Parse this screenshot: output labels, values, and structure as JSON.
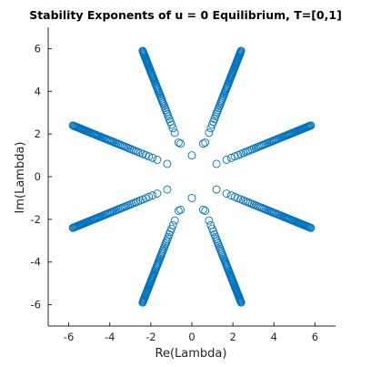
{
  "chart_data": {
    "type": "scatter",
    "title": "Stability Exponents of u = 0 Equilibrium, T=[0,1]",
    "xlabel": "Re(Lambda)",
    "ylabel": "Im(Lambda)",
    "xlim": [
      -7,
      7
    ],
    "ylim": [
      -7,
      7
    ],
    "xticks": [
      -6,
      -4,
      -2,
      0,
      2,
      4,
      6
    ],
    "yticks": [
      -6,
      -4,
      -2,
      0,
      2,
      4,
      6
    ],
    "grid": false,
    "marker": "open-circle",
    "color": "#0072BD",
    "branches": [
      {
        "from": [
          1.2,
          0.6
        ],
        "to": [
          5.8,
          2.4
        ],
        "points": 60
      },
      {
        "from": [
          0.65,
          1.6
        ],
        "to": [
          2.4,
          5.9
        ],
        "points": 60
      },
      {
        "from": [
          -1.2,
          0.6
        ],
        "to": [
          -5.8,
          2.4
        ],
        "points": 60
      },
      {
        "from": [
          -0.65,
          1.6
        ],
        "to": [
          -2.4,
          5.9
        ],
        "points": 60
      },
      {
        "from": [
          1.2,
          -0.6
        ],
        "to": [
          5.8,
          -2.4
        ],
        "points": 60
      },
      {
        "from": [
          0.65,
          -1.6
        ],
        "to": [
          2.4,
          -5.9
        ],
        "points": 60
      },
      {
        "from": [
          -1.2,
          -0.6
        ],
        "to": [
          -5.8,
          -2.4
        ],
        "points": 60
      },
      {
        "from": [
          -0.65,
          -1.6
        ],
        "to": [
          -2.4,
          -5.9
        ],
        "points": 60
      }
    ],
    "extra_points": [
      {
        "x": 0,
        "y": 1.0
      },
      {
        "x": 0,
        "y": -1.0
      },
      {
        "x": 0.55,
        "y": 1.55
      },
      {
        "x": -0.55,
        "y": 1.55
      },
      {
        "x": 0.55,
        "y": -1.55
      },
      {
        "x": -0.55,
        "y": -1.55
      }
    ]
  }
}
